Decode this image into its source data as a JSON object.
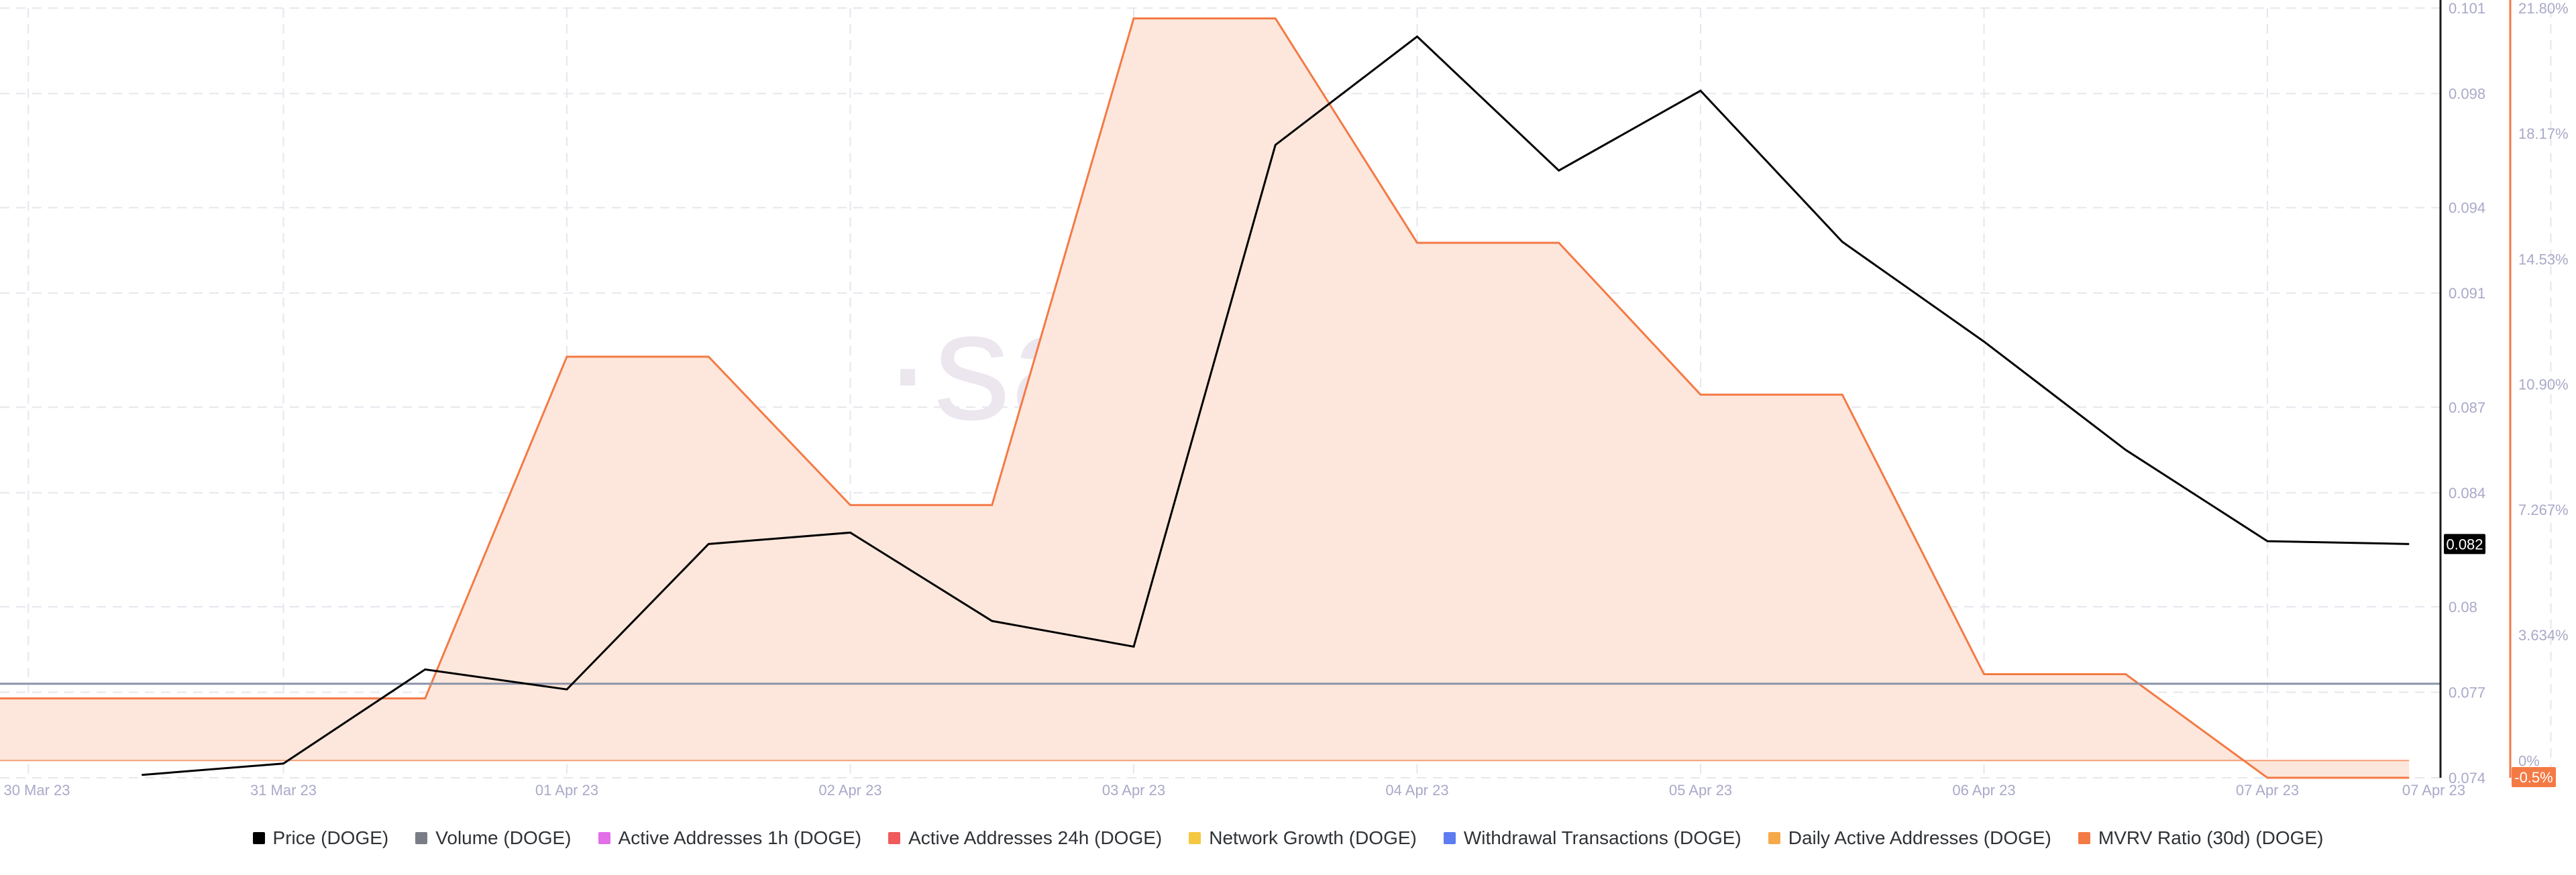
{
  "watermark": "·santiment·",
  "current_price_label": "0.082",
  "current_mvrv_label": "-0.5%",
  "legend": [
    {
      "label": "Price (DOGE)",
      "color": "#000000"
    },
    {
      "label": "Volume (DOGE)",
      "color": "#7a7d85"
    },
    {
      "label": "Active Addresses 1h (DOGE)",
      "color": "#e26ee8"
    },
    {
      "label": "Active Addresses 24h (DOGE)",
      "color": "#f05a5a"
    },
    {
      "label": "Network Growth (DOGE)",
      "color": "#f5c842"
    },
    {
      "label": "Withdrawal Transactions (DOGE)",
      "color": "#5c7cf0"
    },
    {
      "label": "Daily Active Addresses (DOGE)",
      "color": "#f7a94a"
    },
    {
      "label": "MVRV Ratio (30d) (DOGE)",
      "color": "#f47a45"
    }
  ],
  "colors": {
    "price": "#000000",
    "volume": "#8b93a8",
    "mvrv_line": "#f47a45",
    "mvrv_fill": "#fde7dc",
    "axis_text": "#a9a9c9",
    "mvrv_axis_text": "#f4a27a",
    "grid": "#e6e6ee"
  },
  "chart_data": {
    "type": "line",
    "x_tick_labels": [
      "30 Mar 23",
      "31 Mar 23",
      "01 Apr 23",
      "02 Apr 23",
      "03 Apr 23",
      "04 Apr 23",
      "05 Apr 23",
      "06 Apr 23",
      "07 Apr 23",
      "07 Apr 23"
    ],
    "x": [
      "30 Mar 12:00",
      "31 Mar 00:00",
      "31 Mar 12:00",
      "01 Apr 00:00",
      "01 Apr 12:00",
      "02 Apr 00:00",
      "02 Apr 12:00",
      "03 Apr 00:00",
      "03 Apr 12:00",
      "04 Apr 00:00",
      "04 Apr 12:00",
      "05 Apr 00:00",
      "05 Apr 12:00",
      "06 Apr 00:00",
      "06 Apr 12:00",
      "07 Apr 00:00",
      "07 Apr 12:00"
    ],
    "price_axis": {
      "ticks": [
        "0.101",
        "0.098",
        "0.094",
        "0.091",
        "0.087",
        "0.084",
        "0.08",
        "0.077",
        "0.074"
      ],
      "ylim": [
        0.074,
        0.101
      ]
    },
    "mvrv_axis": {
      "ticks": [
        "21.80%",
        "18.17%",
        "14.53%",
        "10.90%",
        "7.267%",
        "3.634%",
        "0%"
      ],
      "ylim": [
        -0.5,
        21.8
      ],
      "unit": "%"
    },
    "series": [
      {
        "name": "Price (DOGE)",
        "axis": "price",
        "x_index": [
          0,
          1,
          2,
          3,
          4,
          5,
          6,
          7,
          8,
          9,
          10,
          11,
          12,
          13,
          14,
          15,
          16
        ],
        "values": [
          0.0741,
          0.0745,
          0.0778,
          0.0771,
          0.0822,
          0.0826,
          0.0795,
          0.0786,
          0.0962,
          0.1,
          0.0953,
          0.0981,
          0.0928,
          0.0893,
          0.0855,
          0.0823,
          0.0822
        ]
      },
      {
        "name": "MVRV Ratio (30d) (DOGE)",
        "axis": "mvrv",
        "x_start": "30 Mar 00:00",
        "points": [
          [
            "30 Mar 00:00",
            1.8
          ],
          [
            "31 Mar 12:00",
            1.8
          ],
          [
            "01 Apr 00:00",
            11.7
          ],
          [
            "01 Apr 12:00",
            11.7
          ],
          [
            "02 Apr 00:00",
            7.4
          ],
          [
            "02 Apr 12:00",
            7.4
          ],
          [
            "03 Apr 00:00",
            21.5
          ],
          [
            "03 Apr 12:00",
            21.5
          ],
          [
            "04 Apr 00:00",
            15.0
          ],
          [
            "04 Apr 12:00",
            15.0
          ],
          [
            "05 Apr 00:00",
            10.6
          ],
          [
            "05 Apr 12:00",
            10.6
          ],
          [
            "06 Apr 00:00",
            2.5
          ],
          [
            "06 Apr 12:00",
            2.5
          ],
          [
            "07 Apr 00:00",
            -0.5
          ],
          [
            "07 Apr 12:00",
            -0.5
          ]
        ]
      },
      {
        "name": "Volume (DOGE)",
        "axis": "price",
        "flat_value": 0.0773
      }
    ],
    "grid": true,
    "legend_position": "bottom"
  }
}
